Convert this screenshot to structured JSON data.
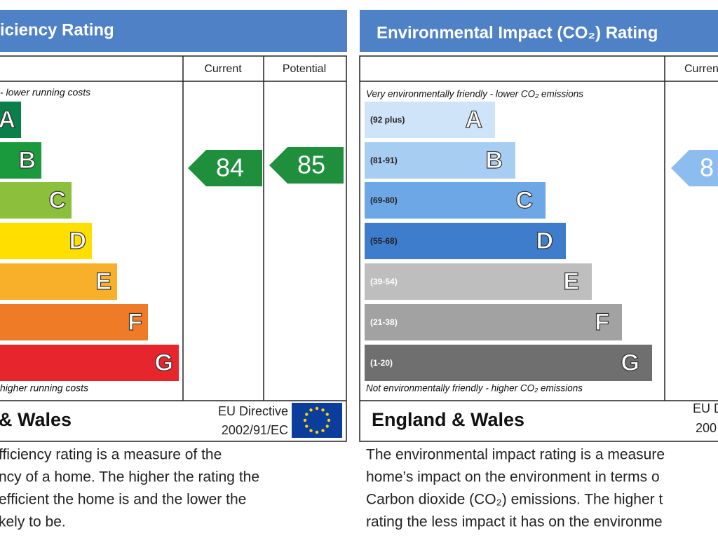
{
  "energy_panel": {
    "title": "iciency Rating",
    "headers": [
      "Current",
      "Potential"
    ],
    "top_note": "- lower running costs",
    "bottom_note": "higher running costs",
    "bands": [
      "A",
      "B",
      "C",
      "D",
      "E",
      "F",
      "G"
    ],
    "current": "84",
    "potential": "85",
    "region": "& Wales",
    "directive": [
      "EU Directive",
      "2002/91/EC"
    ],
    "description": [
      "fficiency rating is a measure of the",
      "ncy of a home. The higher the rating the",
      "efficient the home is and the lower the",
      "kely to be."
    ]
  },
  "environment_panel": {
    "title": "Environmental Impact (CO₂) Rating",
    "headers": [
      "Curren"
    ],
    "top_note": "Very environmentally friendly - lower CO₂ emissions",
    "bottom_note": "Not environmentally friendly - higher CO₂ emissions",
    "bands": [
      {
        "range": "(92 plus)",
        "letter": "A"
      },
      {
        "range": "(81-91)",
        "letter": "B"
      },
      {
        "range": "(69-80)",
        "letter": "C"
      },
      {
        "range": "(55-68)",
        "letter": "D"
      },
      {
        "range": "(39-54)",
        "letter": "E"
      },
      {
        "range": "(21-38)",
        "letter": "F"
      },
      {
        "range": "(1-20)",
        "letter": "G"
      }
    ],
    "current": "8",
    "region": "England & Wales",
    "directive": [
      "EU D",
      "200"
    ],
    "description": [
      "The environmental impact rating is a measure",
      "home’s impact on the environment in terms o",
      "Carbon dioxide (CO₂) emissions. The higher t",
      "rating the less impact it has on the environme"
    ]
  }
}
